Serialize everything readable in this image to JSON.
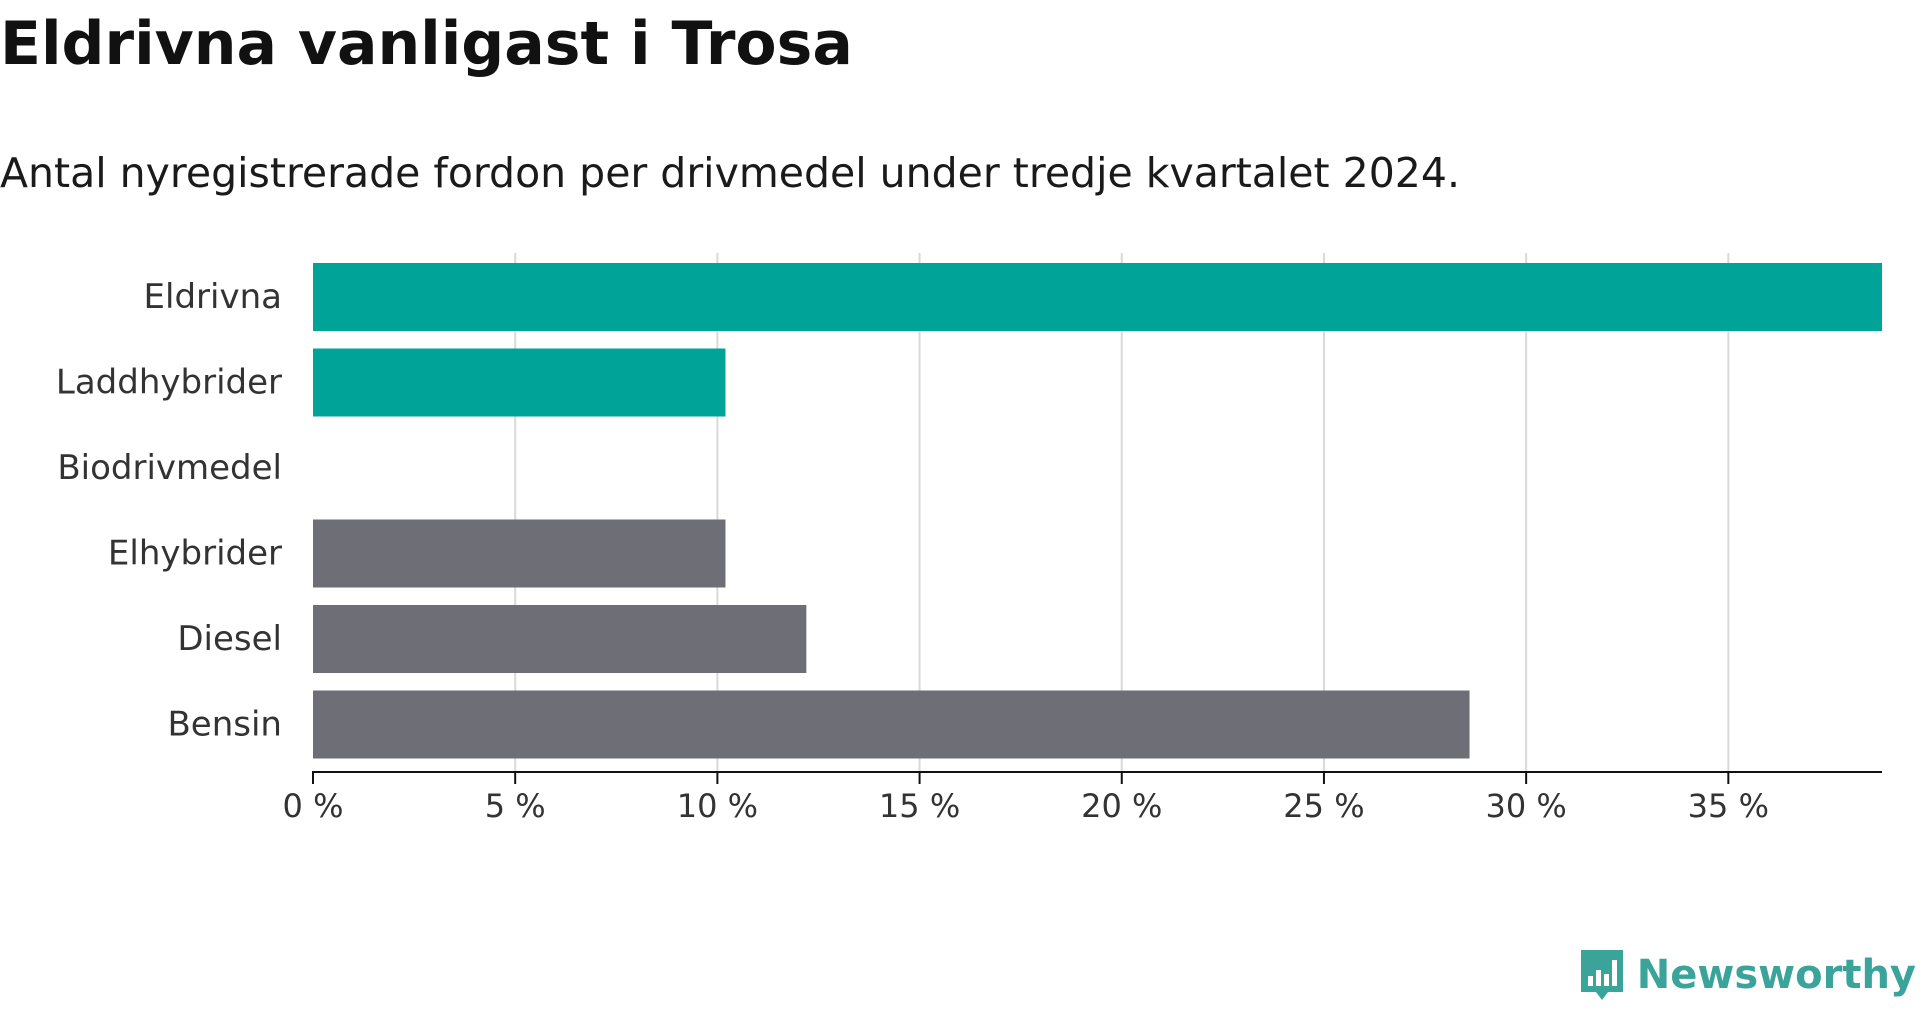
{
  "title": "Eldrivna vanligast i Trosa",
  "subtitle": "Antal nyregistrerade fordon per drivmedel under tredje kvartalet 2024.",
  "brand": {
    "name": "Newsworthy",
    "icon": "newsworthy-logo-icon",
    "color": "#3aa39a"
  },
  "colors": {
    "highlight": "#00a398",
    "default": "#6e6e76",
    "grid": "#d9d9d9",
    "axis": "#111111"
  },
  "chart_data": {
    "type": "bar",
    "orientation": "horizontal",
    "categories": [
      "Eldrivna",
      "Laddhybrider",
      "Biodrivmedel",
      "Elhybrider",
      "Diesel",
      "Bensin"
    ],
    "values": [
      38.8,
      10.2,
      0,
      10.2,
      12.2,
      28.6
    ],
    "highlighted": [
      true,
      true,
      false,
      false,
      false,
      false
    ],
    "x_ticks": [
      0,
      5,
      10,
      15,
      20,
      25,
      30,
      35
    ],
    "x_tick_labels": [
      "0 %",
      "5 %",
      "10 %",
      "15 %",
      "20 %",
      "25 %",
      "30 %",
      "35 %"
    ],
    "xlim": [
      0,
      38.8
    ],
    "grid": true,
    "legend": "none"
  }
}
